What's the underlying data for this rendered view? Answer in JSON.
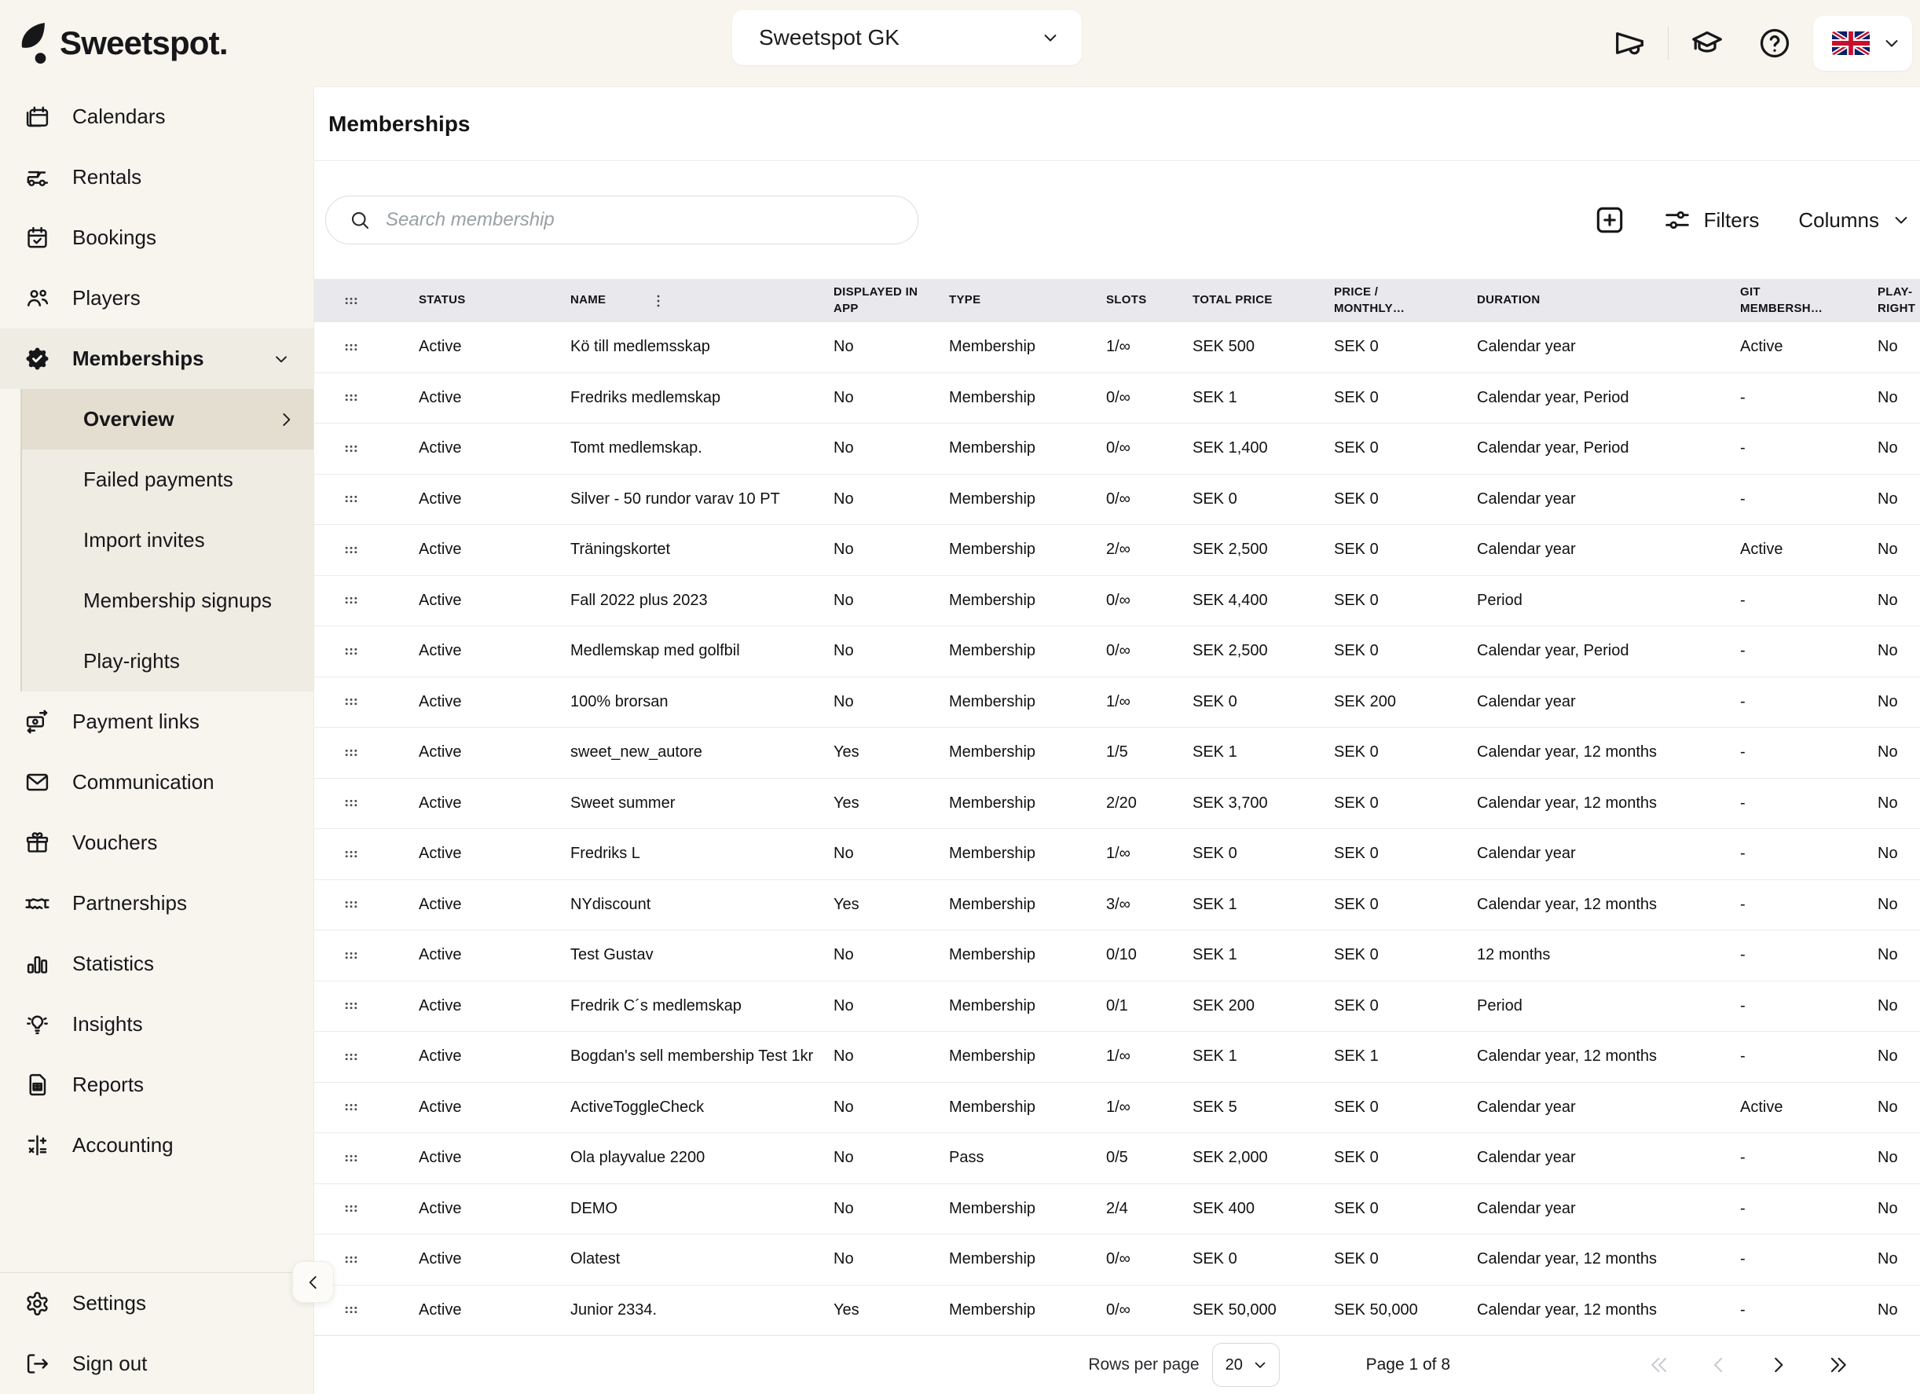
{
  "topbar": {
    "logo_text": "Sweetspot.",
    "club_selector_value": "Sweetspot GK"
  },
  "sidebar": {
    "items": [
      {
        "label": "Calendars",
        "icon": "calendar"
      },
      {
        "label": "Rentals",
        "icon": "golf-cart"
      },
      {
        "label": "Bookings",
        "icon": "calendar-check"
      },
      {
        "label": "Players",
        "icon": "users"
      },
      {
        "label": "Memberships",
        "icon": "badge-check"
      },
      {
        "label": "Payment links",
        "icon": "payment"
      },
      {
        "label": "Communication",
        "icon": "envelope"
      },
      {
        "label": "Vouchers",
        "icon": "gift"
      },
      {
        "label": "Partnerships",
        "icon": "handshake"
      },
      {
        "label": "Statistics",
        "icon": "bar-chart"
      },
      {
        "label": "Insights",
        "icon": "lightbulb"
      },
      {
        "label": "Reports",
        "icon": "report"
      },
      {
        "label": "Accounting",
        "icon": "accounting"
      }
    ],
    "submenu": [
      {
        "label": "Overview",
        "selected": true
      },
      {
        "label": "Failed payments"
      },
      {
        "label": "Import invites"
      },
      {
        "label": "Membership signups"
      },
      {
        "label": "Play-rights"
      }
    ],
    "bottom": [
      {
        "label": "Settings",
        "icon": "gear"
      },
      {
        "label": "Sign out",
        "icon": "sign-out"
      }
    ]
  },
  "page": {
    "title": "Memberships",
    "search_placeholder": "Search membership",
    "filters_label": "Filters",
    "columns_label": "Columns"
  },
  "table": {
    "headers": [
      "STATUS",
      "NAME",
      "DISPLAYED IN APP",
      "TYPE",
      "SLOTS",
      "TOTAL PRICE",
      "PRICE / MONTHLY…",
      "DURATION",
      "GIT MEMBERSH…",
      "PLAY-RIGHT"
    ],
    "rows": [
      {
        "status": "Active",
        "name": "Kö till medlemsskap",
        "displayed_in_app": "No",
        "type": "Membership",
        "slots": "1/∞",
        "total_price": "SEK 500",
        "price_monthly": "SEK 0",
        "duration": "Calendar year",
        "git_membership": "Active",
        "play_right": "No"
      },
      {
        "status": "Active",
        "name": "Fredriks medlemskap",
        "displayed_in_app": "No",
        "type": "Membership",
        "slots": "0/∞",
        "total_price": "SEK 1",
        "price_monthly": "SEK 0",
        "duration": "Calendar year, Period",
        "git_membership": "-",
        "play_right": "No"
      },
      {
        "status": "Active",
        "name": "Tomt medlemskap.",
        "displayed_in_app": "No",
        "type": "Membership",
        "slots": "0/∞",
        "total_price": "SEK 1,400",
        "price_monthly": "SEK 0",
        "duration": "Calendar year, Period",
        "git_membership": "-",
        "play_right": "No"
      },
      {
        "status": "Active",
        "name": "Silver - 50 rundor varav 10 PT",
        "displayed_in_app": "No",
        "type": "Membership",
        "slots": "0/∞",
        "total_price": "SEK 0",
        "price_monthly": "SEK 0",
        "duration": "Calendar year",
        "git_membership": "-",
        "play_right": "No"
      },
      {
        "status": "Active",
        "name": "Träningskortet",
        "displayed_in_app": "No",
        "type": "Membership",
        "slots": "2/∞",
        "total_price": "SEK 2,500",
        "price_monthly": "SEK 0",
        "duration": "Calendar year",
        "git_membership": "Active",
        "play_right": "No"
      },
      {
        "status": "Active",
        "name": "Fall 2022 plus 2023",
        "displayed_in_app": "No",
        "type": "Membership",
        "slots": "0/∞",
        "total_price": "SEK 4,400",
        "price_monthly": "SEK 0",
        "duration": "Period",
        "git_membership": "-",
        "play_right": "No"
      },
      {
        "status": "Active",
        "name": "Medlemskap med golfbil",
        "displayed_in_app": "No",
        "type": "Membership",
        "slots": "0/∞",
        "total_price": "SEK 2,500",
        "price_monthly": "SEK 0",
        "duration": "Calendar year, Period",
        "git_membership": "-",
        "play_right": "No"
      },
      {
        "status": "Active",
        "name": "100% brorsan",
        "displayed_in_app": "No",
        "type": "Membership",
        "slots": "1/∞",
        "total_price": "SEK 0",
        "price_monthly": "SEK 200",
        "duration": "Calendar year",
        "git_membership": "-",
        "play_right": "No"
      },
      {
        "status": "Active",
        "name": "sweet_new_autore",
        "displayed_in_app": "Yes",
        "type": "Membership",
        "slots": "1/5",
        "total_price": "SEK 1",
        "price_monthly": "SEK 0",
        "duration": "Calendar year, 12 months",
        "git_membership": "-",
        "play_right": "No"
      },
      {
        "status": "Active",
        "name": "Sweet summer",
        "displayed_in_app": "Yes",
        "type": "Membership",
        "slots": "2/20",
        "total_price": "SEK 3,700",
        "price_monthly": "SEK 0",
        "duration": "Calendar year, 12 months",
        "git_membership": "-",
        "play_right": "No"
      },
      {
        "status": "Active",
        "name": "Fredriks L",
        "displayed_in_app": "No",
        "type": "Membership",
        "slots": "1/∞",
        "total_price": "SEK 0",
        "price_monthly": "SEK 0",
        "duration": "Calendar year",
        "git_membership": "-",
        "play_right": "No"
      },
      {
        "status": "Active",
        "name": "NYdiscount",
        "displayed_in_app": "Yes",
        "type": "Membership",
        "slots": "3/∞",
        "total_price": "SEK 1",
        "price_monthly": "SEK 0",
        "duration": "Calendar year, 12 months",
        "git_membership": "-",
        "play_right": "No"
      },
      {
        "status": "Active",
        "name": "Test Gustav",
        "displayed_in_app": "No",
        "type": "Membership",
        "slots": "0/10",
        "total_price": "SEK 1",
        "price_monthly": "SEK 0",
        "duration": "12 months",
        "git_membership": "-",
        "play_right": "No"
      },
      {
        "status": "Active",
        "name": "Fredrik C´s medlemskap",
        "displayed_in_app": "No",
        "type": "Membership",
        "slots": "0/1",
        "total_price": "SEK 200",
        "price_monthly": "SEK 0",
        "duration": "Period",
        "git_membership": "-",
        "play_right": "No"
      },
      {
        "status": "Active",
        "name": "Bogdan's sell membership Test 1kr",
        "displayed_in_app": "No",
        "type": "Membership",
        "slots": "1/∞",
        "total_price": "SEK 1",
        "price_monthly": "SEK 1",
        "duration": "Calendar year, 12 months",
        "git_membership": "-",
        "play_right": "No"
      },
      {
        "status": "Active",
        "name": "ActiveToggleCheck",
        "displayed_in_app": "No",
        "type": "Membership",
        "slots": "1/∞",
        "total_price": "SEK 5",
        "price_monthly": "SEK 0",
        "duration": "Calendar year",
        "git_membership": "Active",
        "play_right": "No"
      },
      {
        "status": "Active",
        "name": "Ola playvalue 2200",
        "displayed_in_app": "No",
        "type": "Pass",
        "slots": "0/5",
        "total_price": "SEK 2,000",
        "price_monthly": "SEK 0",
        "duration": "Calendar year",
        "git_membership": "-",
        "play_right": "No"
      },
      {
        "status": "Active",
        "name": "DEMO",
        "displayed_in_app": "No",
        "type": "Membership",
        "slots": "2/4",
        "total_price": "SEK 400",
        "price_monthly": "SEK 0",
        "duration": "Calendar year",
        "git_membership": "-",
        "play_right": "No"
      },
      {
        "status": "Active",
        "name": "Olatest",
        "displayed_in_app": "No",
        "type": "Membership",
        "slots": "0/∞",
        "total_price": "SEK 0",
        "price_monthly": "SEK 0",
        "duration": "Calendar year, 12 months",
        "git_membership": "-",
        "play_right": "No"
      },
      {
        "status": "Active",
        "name": "Junior 2334.",
        "displayed_in_app": "Yes",
        "type": "Membership",
        "slots": "0/∞",
        "total_price": "SEK 50,000",
        "price_monthly": "SEK 50,000",
        "duration": "Calendar year, 12 months",
        "git_membership": "-",
        "play_right": "No"
      }
    ]
  },
  "pagination": {
    "rows_per_page_label": "Rows per page",
    "rows_per_page_value": "20",
    "page_label": "Page 1 of 8"
  }
}
